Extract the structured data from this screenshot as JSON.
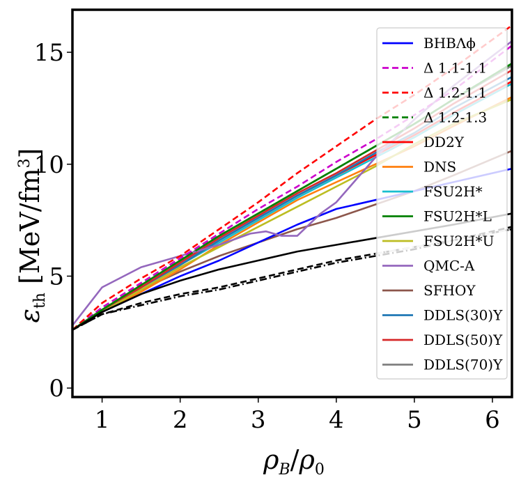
{
  "chart_data": {
    "type": "line",
    "title": "",
    "xlabel": "ρB/ρ0",
    "ylabel": "εth [MeV/fm³]",
    "xlim": [
      0.62,
      6.25
    ],
    "ylim": [
      -0.4,
      16.9
    ],
    "xticks": [
      1,
      2,
      3,
      4,
      5,
      6
    ],
    "yticks": [
      0,
      5,
      10,
      15
    ],
    "xtick_labels": [
      "1",
      "2",
      "3",
      "4",
      "5",
      "6"
    ],
    "ytick_labels": [
      "0",
      "5",
      "10",
      "15"
    ],
    "legend_position": "top-right",
    "series": [
      {
        "name": "SFHOY",
        "color": "#8c564b",
        "dash": "solid",
        "in_legend": true,
        "x": [
          0.62,
          1.0,
          1.5,
          2.0,
          2.5,
          3.0,
          3.5,
          4.0,
          4.5,
          5.0,
          5.5,
          6.25
        ],
        "y": [
          2.6,
          3.5,
          4.4,
          5.2,
          5.9,
          6.5,
          7.1,
          7.6,
          8.2,
          8.8,
          9.5,
          10.6
        ]
      },
      {
        "name": "BHBΛϕ",
        "color": "#0000ff",
        "dash": "solid",
        "in_legend": true,
        "x": [
          0.62,
          1.0,
          1.5,
          2.0,
          2.5,
          3.0,
          3.5,
          4.0,
          4.5,
          5.0,
          5.5,
          6.25
        ],
        "y": [
          2.6,
          3.4,
          4.2,
          5.0,
          5.7,
          6.5,
          7.3,
          8.0,
          8.4,
          8.8,
          9.2,
          9.8
        ]
      },
      {
        "name": "DNS",
        "color": "#ff7f0e",
        "dash": "solid",
        "in_legend": true,
        "x": [
          0.62,
          1.0,
          1.5,
          2.0,
          2.5,
          3.0,
          3.5,
          4.0,
          4.5,
          5.0,
          5.5,
          6.25
        ],
        "y": [
          2.6,
          3.4,
          4.3,
          5.3,
          6.4,
          7.4,
          8.4,
          9.2,
          10.0,
          10.8,
          11.7,
          13.0
        ]
      },
      {
        "name": "FSU2H*U",
        "color": "#bcbd22",
        "dash": "solid",
        "in_legend": true,
        "x": [
          0.62,
          1.0,
          1.5,
          2.0,
          2.5,
          3.0,
          3.5,
          4.0,
          4.5,
          5.0,
          5.5,
          6.25
        ],
        "y": [
          2.6,
          3.4,
          4.4,
          5.4,
          6.3,
          7.2,
          8.1,
          9.0,
          9.9,
          10.9,
          11.8,
          12.9
        ]
      },
      {
        "name": "FSU2H*",
        "color": "#17becf",
        "dash": "solid",
        "in_legend": true,
        "x": [
          0.62,
          1.0,
          1.5,
          2.0,
          2.5,
          3.0,
          3.5,
          4.0,
          4.5,
          5.0,
          5.5,
          6.25
        ],
        "y": [
          2.6,
          3.5,
          4.5,
          5.5,
          6.5,
          7.5,
          8.5,
          9.4,
          10.3,
          11.2,
          12.2,
          13.6
        ]
      },
      {
        "name": "DD2Y",
        "color": "#ff0000",
        "dash": "solid",
        "in_legend": true,
        "x": [
          0.62,
          1.0,
          1.5,
          2.0,
          2.5,
          3.0,
          3.5,
          4.0,
          4.5,
          5.0,
          5.5,
          6.25
        ],
        "y": [
          2.6,
          3.5,
          4.5,
          5.5,
          6.6,
          7.6,
          8.6,
          9.5,
          10.4,
          11.3,
          12.3,
          13.7
        ]
      },
      {
        "name": "DDLS(30)Y",
        "color": "#1f77b4",
        "dash": "solid",
        "in_legend": true,
        "x": [
          0.62,
          1.0,
          1.5,
          2.0,
          2.5,
          3.0,
          3.5,
          4.0,
          4.5,
          5.0,
          5.5,
          6.25
        ],
        "y": [
          2.6,
          3.5,
          4.5,
          5.5,
          6.6,
          7.6,
          8.6,
          9.5,
          10.5,
          11.4,
          12.5,
          13.9
        ]
      },
      {
        "name": "DDLS(50)Y",
        "color": "#d62728",
        "dash": "solid",
        "in_legend": true,
        "x": [
          0.62,
          1.0,
          1.5,
          2.0,
          2.5,
          3.0,
          3.5,
          4.0,
          4.5,
          5.0,
          5.5,
          6.25
        ],
        "y": [
          2.6,
          3.5,
          4.5,
          5.6,
          6.7,
          7.7,
          8.7,
          9.6,
          10.6,
          11.6,
          12.7,
          14.2
        ]
      },
      {
        "name": "DDLS(70)Y",
        "color": "#7f7f7f",
        "dash": "solid",
        "in_legend": true,
        "x": [
          0.62,
          1.0,
          1.5,
          2.0,
          2.5,
          3.0,
          3.5,
          4.0,
          4.5,
          5.0,
          5.5,
          6.25
        ],
        "y": [
          2.6,
          3.5,
          4.6,
          5.7,
          6.8,
          7.8,
          8.8,
          9.8,
          10.8,
          11.8,
          12.9,
          14.4
        ]
      },
      {
        "name": "FSU2H*L",
        "color": "#008000",
        "dash": "solid",
        "in_legend": true,
        "x": [
          0.62,
          1.0,
          1.5,
          2.0,
          2.5,
          3.0,
          3.5,
          4.0,
          4.5,
          5.0,
          5.5,
          6.25
        ],
        "y": [
          2.6,
          3.5,
          4.6,
          5.7,
          6.8,
          7.8,
          8.8,
          9.8,
          10.8,
          11.8,
          12.9,
          14.5
        ]
      },
      {
        "name": "QMC-A",
        "color": "#9467bd",
        "dash": "solid",
        "in_legend": true,
        "x": [
          0.62,
          1.0,
          1.5,
          2.0,
          2.5,
          2.9,
          3.1,
          3.3,
          3.5,
          3.8,
          4.0,
          4.5,
          5.0,
          5.5,
          6.25
        ],
        "y": [
          2.8,
          4.5,
          5.4,
          5.9,
          6.4,
          6.9,
          7.0,
          6.8,
          6.8,
          7.8,
          8.3,
          10.3,
          12.0,
          13.5,
          15.5
        ]
      },
      {
        "name": "Δ 1.1-1.1",
        "color": "#cc00cc",
        "dash": "dashed",
        "in_legend": true,
        "x": [
          0.62,
          1.0,
          1.5,
          2.0,
          2.5,
          3.0,
          3.5,
          4.0,
          4.5,
          5.0,
          5.5,
          6.25
        ],
        "y": [
          2.6,
          3.6,
          4.7,
          5.8,
          6.9,
          8.0,
          9.0,
          10.1,
          11.1,
          12.2,
          13.3,
          15.3
        ]
      },
      {
        "name": "Δ 1.2-1.1",
        "color": "#ff0000",
        "dash": "dashed",
        "in_legend": true,
        "x": [
          0.62,
          1.0,
          1.5,
          2.0,
          2.5,
          3.0,
          3.5,
          4.0,
          4.5,
          5.0,
          5.5,
          6.25
        ],
        "y": [
          2.6,
          3.8,
          4.9,
          5.9,
          7.1,
          8.3,
          9.6,
          10.8,
          12.0,
          13.1,
          14.3,
          16.2
        ]
      },
      {
        "name": "Δ 1.2-1.3",
        "color": "#008000",
        "dash": "dashed",
        "in_legend": true,
        "x": [
          0.62,
          1.0,
          1.5,
          2.0,
          2.5,
          3.0,
          3.5,
          4.0,
          4.5,
          5.0,
          5.5,
          6.25
        ],
        "y": [
          2.6,
          3.5,
          4.6,
          5.7,
          6.8,
          7.8,
          8.8,
          9.8,
          10.8,
          11.8,
          12.9,
          14.5
        ]
      },
      {
        "name": "",
        "color": "#000000",
        "dash": "solid",
        "in_legend": false,
        "x": [
          0.62,
          1.0,
          1.5,
          2.0,
          2.5,
          3.0,
          3.5,
          4.0,
          4.5,
          5.0,
          5.5,
          6.25
        ],
        "y": [
          2.6,
          3.4,
          4.2,
          4.8,
          5.3,
          5.7,
          6.1,
          6.4,
          6.7,
          7.0,
          7.3,
          7.8
        ]
      },
      {
        "name": "",
        "color": "#000000",
        "dash": "dashed",
        "in_legend": false,
        "x": [
          0.62,
          1.0,
          1.5,
          2.0,
          2.5,
          3.0,
          3.5,
          4.0,
          4.5,
          5.0,
          5.5,
          6.25
        ],
        "y": [
          2.6,
          3.3,
          3.8,
          4.2,
          4.5,
          4.9,
          5.3,
          5.7,
          6.0,
          6.3,
          6.6,
          7.2
        ]
      },
      {
        "name": "",
        "color": "#000000",
        "dash": "dashdot",
        "in_legend": false,
        "x": [
          0.62,
          1.0,
          1.5,
          2.0,
          2.5,
          3.0,
          3.5,
          4.0,
          4.5,
          5.0,
          5.5,
          6.25
        ],
        "y": [
          2.6,
          3.3,
          3.7,
          4.1,
          4.4,
          4.8,
          5.2,
          5.6,
          5.9,
          6.2,
          6.6,
          7.1
        ]
      },
      {
        "name": "",
        "color": "#cccccc",
        "dash": "dashdot",
        "in_legend": false,
        "x": [
          4.5,
          5.0,
          5.5,
          6.25
        ],
        "y": [
          6.0,
          6.3,
          6.6,
          7.1
        ]
      }
    ],
    "legend": [
      {
        "label": "BHBΛϕ",
        "color": "#0000ff",
        "dash": "solid"
      },
      {
        "label": "Δ 1.1-1.1",
        "color": "#cc00cc",
        "dash": "dashed"
      },
      {
        "label": "Δ 1.2-1.1",
        "color": "#ff0000",
        "dash": "dashed"
      },
      {
        "label": "Δ 1.2-1.3",
        "color": "#008000",
        "dash": "dashed"
      },
      {
        "label": "DD2Y",
        "color": "#ff0000",
        "dash": "solid"
      },
      {
        "label": "DNS",
        "color": "#ff7f0e",
        "dash": "solid"
      },
      {
        "label": "FSU2H*",
        "color": "#17becf",
        "dash": "solid"
      },
      {
        "label": "FSU2H*L",
        "color": "#008000",
        "dash": "solid"
      },
      {
        "label": "FSU2H*U",
        "color": "#bcbd22",
        "dash": "solid"
      },
      {
        "label": "QMC-A",
        "color": "#9467bd",
        "dash": "solid"
      },
      {
        "label": "SFHOY",
        "color": "#8c564b",
        "dash": "solid"
      },
      {
        "label": "DDLS(30)Y",
        "color": "#1f77b4",
        "dash": "solid"
      },
      {
        "label": "DDLS(50)Y",
        "color": "#d62728",
        "dash": "solid"
      },
      {
        "label": "DDLS(70)Y",
        "color": "#7f7f7f",
        "dash": "solid"
      }
    ]
  }
}
